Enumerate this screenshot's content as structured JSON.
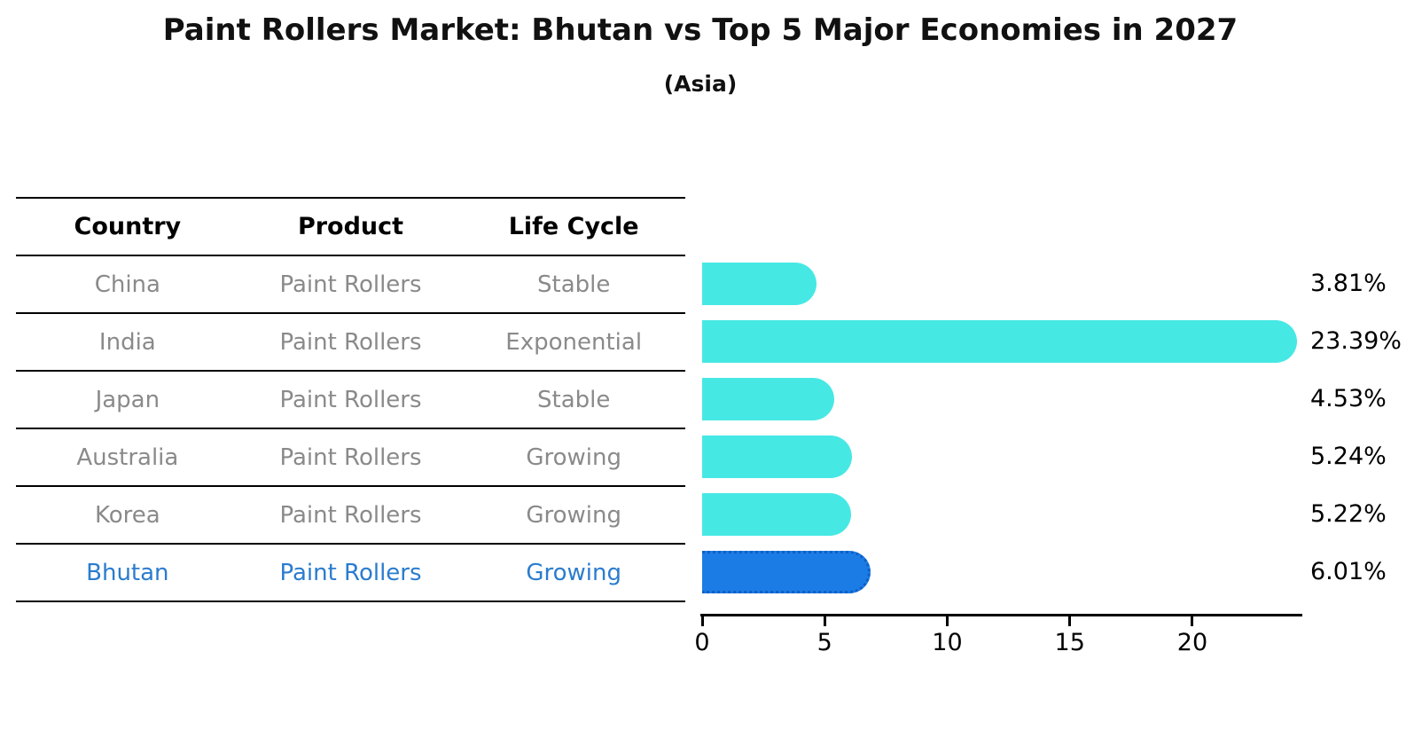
{
  "title": "Paint Rollers Market: Bhutan vs Top 5 Major Economies in 2027",
  "subtitle": "(Asia)",
  "table": {
    "headers": [
      "Country",
      "Product",
      "Life Cycle"
    ],
    "rows": [
      {
        "country": "China",
        "product": "Paint Rollers",
        "life_cycle": "Stable",
        "highlight": false
      },
      {
        "country": "India",
        "product": "Paint Rollers",
        "life_cycle": "Exponential",
        "highlight": false
      },
      {
        "country": "Japan",
        "product": "Paint Rollers",
        "life_cycle": "Stable",
        "highlight": false
      },
      {
        "country": "Australia",
        "product": "Paint Rollers",
        "life_cycle": "Growing",
        "highlight": false
      },
      {
        "country": "Korea",
        "product": "Paint Rollers",
        "life_cycle": "Growing",
        "highlight": false
      },
      {
        "country": "Bhutan",
        "product": "Paint Rollers",
        "life_cycle": "Growing",
        "highlight": true
      }
    ]
  },
  "chart_data": {
    "type": "bar",
    "orientation": "horizontal",
    "title": "Paint Rollers Market: Bhutan vs Top 5 Major Economies in 2027",
    "subtitle": "(Asia)",
    "categories": [
      "China",
      "India",
      "Japan",
      "Australia",
      "Korea",
      "Bhutan"
    ],
    "values": [
      3.81,
      23.39,
      4.53,
      5.24,
      5.22,
      6.01
    ],
    "value_labels": [
      "3.81%",
      "23.39%",
      "4.53%",
      "5.24%",
      "5.22%",
      "6.01%"
    ],
    "xlabel": "",
    "ylabel": "",
    "xlim": [
      0,
      24.45
    ],
    "xticks": [
      0,
      5,
      10,
      15,
      20
    ],
    "grid": false,
    "legend": false,
    "highlight_index": 5,
    "colors": {
      "bar_default": "#46e8e4",
      "bar_highlight": "#1b7ce5",
      "highlight_border": "#0e5fc4",
      "highlight_text": "#2b7cce",
      "table_text": "#8a8a8a",
      "header_text": "#000000",
      "axis": "#000000"
    }
  }
}
